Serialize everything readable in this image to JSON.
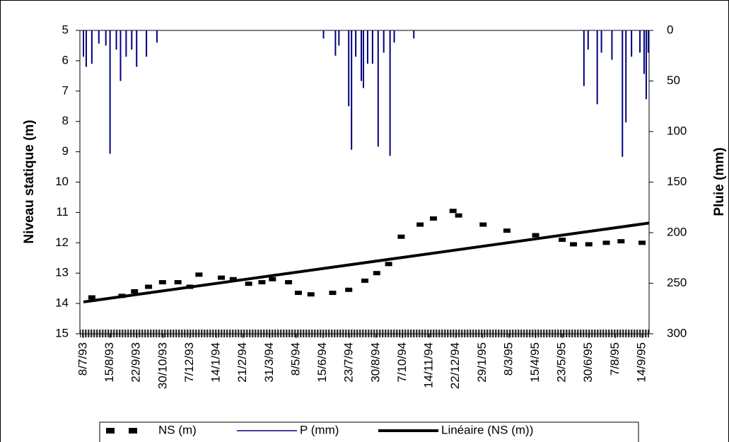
{
  "chart_data": {
    "type": "line",
    "y_label": "Niveau statique (m)",
    "y2_label": "Pluie (mm)",
    "categories": [
      "8/7/93",
      "15/8/93",
      "22/9/93",
      "30/10/93",
      "7/12/93",
      "14/1/94",
      "21/2/94",
      "31/3/94",
      "8/5/94",
      "15/6/94",
      "23/7/94",
      "30/8/94",
      "7/10/94",
      "14/11/94",
      "22/12/94",
      "29/1/95",
      "8/3/95",
      "15/4/95",
      "23/5/95",
      "30/6/95",
      "7/8/95",
      "14/9/95"
    ],
    "ylim": [
      15,
      5
    ],
    "yticks": [
      5,
      6,
      7,
      8,
      9,
      10,
      11,
      12,
      13,
      14,
      15
    ],
    "y2lim": [
      300,
      0
    ],
    "y2ticks": [
      0,
      50,
      100,
      150,
      200,
      250,
      300
    ],
    "legend": "bottom",
    "series": [
      {
        "name": "NS (m)",
        "color": "#000000",
        "marker": "dash",
        "x": [
          "20/7/93",
          "1/9/93",
          "19/9/93",
          "9/10/93",
          "29/10/93",
          "20/11/93",
          "7/12/93",
          "20/12/93",
          "21/1/94",
          "7/2/94",
          "1/3/94",
          "20/3/94",
          "4/4/94",
          "27/4/94",
          "11/5/94",
          "29/5/94",
          "29/6/94",
          "22/7/94",
          "14/8/94",
          "31/8/94",
          "17/9/94",
          "5/10/94",
          "1/11/94",
          "20/11/94",
          "18/12/94",
          "26/12/94",
          "30/1/95",
          "5/3/95",
          "15/4/95",
          "23/5/95",
          "8/6/95",
          "30/6/95",
          "25/7/95",
          "15/8/95",
          "14/9/95"
        ],
        "values": [
          13.8,
          13.75,
          13.6,
          13.45,
          13.3,
          13.3,
          13.45,
          13.05,
          13.15,
          13.2,
          13.35,
          13.3,
          13.2,
          13.3,
          13.65,
          13.7,
          13.65,
          13.55,
          13.25,
          13.0,
          12.7,
          11.8,
          11.4,
          11.2,
          10.95,
          11.1,
          11.4,
          11.6,
          11.75,
          11.9,
          12.05,
          12.05,
          12.0,
          11.95,
          12.0
        ]
      },
      {
        "name": "P (mm)",
        "color": "#000080",
        "axis": "y2",
        "marker": "spike",
        "x": [
          "8/7/93",
          "12/7/93",
          "20/7/93",
          "30/7/93",
          "9/8/93",
          "15/8/93",
          "24/8/93",
          "30/8/93",
          "7/9/93",
          "15/9/93",
          "22/9/93",
          "6/10/93",
          "21/10/93",
          "16/6/94",
          "3/7/94",
          "8/7/94",
          "22/7/94",
          "26/7/94",
          "1/8/94",
          "9/8/94",
          "12/8/94",
          "18/8/94",
          "25/8/94",
          "2/9/94",
          "10/9/94",
          "19/9/94",
          "25/9/94",
          "23/10/94",
          "23/6/95",
          "29/6/95",
          "12/7/95",
          "18/7/95",
          "2/8/95",
          "17/8/95",
          "22/8/95",
          "30/8/95",
          "11/9/95",
          "17/9/95",
          "20/9/95",
          "23/9/95"
        ],
        "values": [
          26,
          36,
          33,
          13,
          15,
          122,
          19,
          50,
          26,
          19,
          36,
          26,
          12,
          8,
          25,
          15,
          75,
          118,
          26,
          50,
          57,
          33,
          33,
          115,
          22,
          124,
          12,
          8,
          55,
          19,
          73,
          22,
          29,
          125,
          91,
          26,
          22,
          43,
          68,
          22
        ]
      },
      {
        "name": "Linéaire (NS (m))",
        "color": "#000000",
        "marker": "trend",
        "x": [
          "8/7/93",
          "24/9/95"
        ],
        "values": [
          13.95,
          11.35
        ]
      }
    ]
  }
}
